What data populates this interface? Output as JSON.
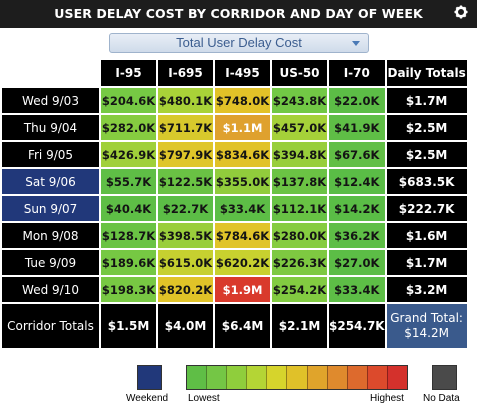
{
  "title": "USER DELAY COST BY CORRIDOR AND DAY OF WEEK",
  "icons": {
    "settings": "gear-icon",
    "dropdown": "chevron-down-icon"
  },
  "metric_select": {
    "value": "Total User Delay Cost"
  },
  "columns": [
    "I-95",
    "I-695",
    "I-495",
    "US-50",
    "I-70",
    "Daily Totals"
  ],
  "rows": [
    {
      "label": "Wed 9/03",
      "weekend": false,
      "values": [
        "$204.6K",
        "$480.1K",
        "$748.0K",
        "$243.8K",
        "$22.0K"
      ],
      "colors": [
        "#76c944",
        "#a9d238",
        "#e2c228",
        "#72c845",
        "#5cbd46"
      ],
      "total": "$1.7M"
    },
    {
      "label": "Thu 9/04",
      "weekend": false,
      "values": [
        "$282.0K",
        "$711.7K",
        "$1.1M",
        "$457.0K",
        "$41.9K"
      ],
      "colors": [
        "#86cc40",
        "#d8c92c",
        "#dfa12e",
        "#a5d139",
        "#5fbe46"
      ],
      "total": "$2.5M",
      "light": [
        false,
        false,
        true,
        false,
        false
      ]
    },
    {
      "label": "Fri 9/05",
      "weekend": false,
      "values": [
        "$426.9K",
        "$797.9K",
        "$834.6K",
        "$394.8K",
        "$67.6K"
      ],
      "colors": [
        "#a0d03a",
        "#dfc62a",
        "#e1c228",
        "#98ce3b",
        "#62bf46"
      ],
      "total": "$2.5M"
    },
    {
      "label": "Sat 9/06",
      "weekend": true,
      "values": [
        "$55.7K",
        "$122.5K",
        "$355.0K",
        "$137.8K",
        "$12.4K"
      ],
      "colors": [
        "#5fbe46",
        "#6ac244",
        "#91cc3c",
        "#6bc344",
        "#5abd46"
      ],
      "total": "$683.5K"
    },
    {
      "label": "Sun 9/07",
      "weekend": true,
      "values": [
        "$40.4K",
        "$22.7K",
        "$33.4K",
        "$112.1K",
        "$14.2K"
      ],
      "colors": [
        "#5ebe46",
        "#5cbd46",
        "#5dbe46",
        "#68c244",
        "#5abd46"
      ],
      "total": "$222.7K"
    },
    {
      "label": "Mon 9/08",
      "weekend": false,
      "values": [
        "$128.7K",
        "$398.5K",
        "$784.6K",
        "$280.0K",
        "$36.2K"
      ],
      "colors": [
        "#6ac344",
        "#99ce3b",
        "#e0c429",
        "#86cc40",
        "#5ebe46"
      ],
      "total": "$1.6M"
    },
    {
      "label": "Tue 9/09",
      "weekend": false,
      "values": [
        "$189.6K",
        "$615.0K",
        "$620.2K",
        "$226.3K",
        "$27.0K"
      ],
      "colors": [
        "#76c843",
        "#c6d030",
        "#c8d12f",
        "#7ec941",
        "#5cbd46"
      ],
      "total": "$1.7M"
    },
    {
      "label": "Wed 9/10",
      "weekend": false,
      "values": [
        "$198.3K",
        "$820.2K",
        "$1.9M",
        "$254.2K",
        "$33.4K"
      ],
      "colors": [
        "#78c843",
        "#e0c328",
        "#d93a2c",
        "#82cb41",
        "#5dbe46"
      ],
      "total": "$3.2M",
      "light": [
        false,
        false,
        true,
        false,
        false
      ]
    }
  ],
  "corridor_totals": {
    "label": "Corridor Totals",
    "values": [
      "$1.5M",
      "$4.0M",
      "$6.4M",
      "$2.1M",
      "$254.7K"
    ]
  },
  "grand_total": {
    "label": "Grand Total:",
    "value": "$14.2M"
  },
  "legend": {
    "weekend_label": "Weekend",
    "lowest_label": "Lowest",
    "highest_label": "Highest",
    "nodata_label": "No Data",
    "weekend_color": "#21387a",
    "nodata_color": "#4a4a4a",
    "scale_colors": [
      "#5fbe46",
      "#74c645",
      "#8fce3c",
      "#b4d535",
      "#d6d42c",
      "#e0c129",
      "#e0a42b",
      "#df8a2d",
      "#dd6a2d",
      "#dc4a2c",
      "#d4312c"
    ]
  }
}
